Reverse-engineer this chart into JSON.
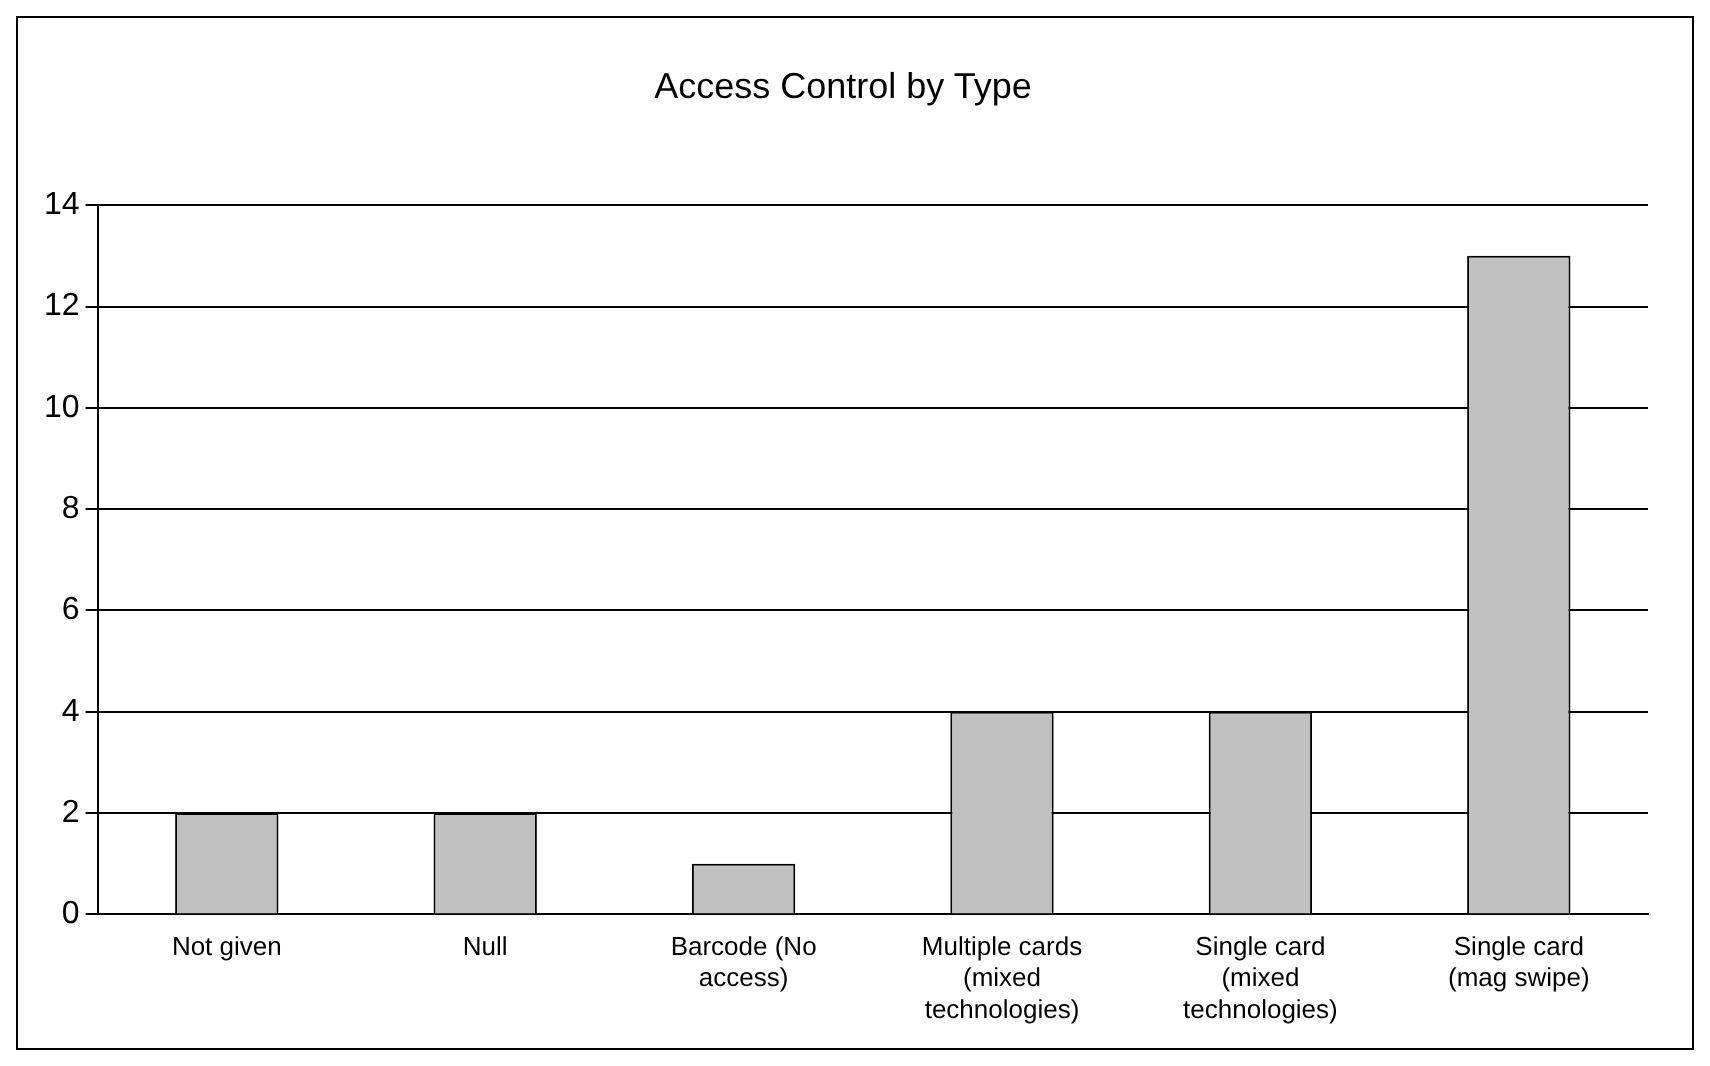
{
  "chart_data": {
    "type": "bar",
    "title": "Access Control by Type",
    "categories": [
      "Not given",
      "Null",
      "Barcode (No access)",
      "Multiple cards (mixed technologies)",
      "Single card (mixed technologies)",
      "Single card (mag swipe)"
    ],
    "values": [
      2,
      2,
      1,
      4,
      4,
      13
    ],
    "color": "#c0c0c0",
    "ylim": [
      0,
      14
    ],
    "yticks": [
      0,
      2,
      4,
      6,
      8,
      10,
      12,
      14
    ],
    "grid": "y",
    "legend": false
  }
}
